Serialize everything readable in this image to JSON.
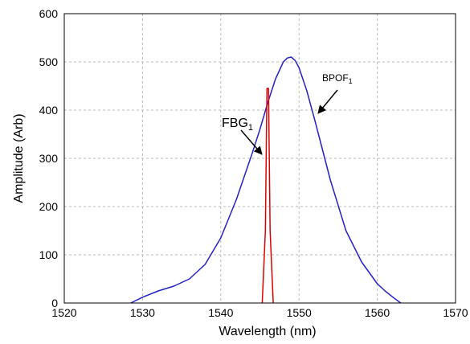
{
  "chart_data": {
    "type": "line",
    "title": "",
    "xlabel": "Wavelength (nm)",
    "ylabel": "Amplitude (Arb)",
    "xlim": [
      1520,
      1570
    ],
    "ylim": [
      0,
      600
    ],
    "xticks": [
      "1520",
      "1530",
      "1540",
      "1550",
      "1560",
      "1570"
    ],
    "yticks": [
      "0",
      "100",
      "200",
      "300",
      "400",
      "500",
      "600"
    ],
    "grid": true,
    "legend": "none",
    "series": [
      {
        "name": "BPOF",
        "color": "#2222cc",
        "x": [
          1528.5,
          1530,
          1532,
          1534,
          1536,
          1538,
          1540,
          1542,
          1544,
          1545,
          1546,
          1547,
          1548,
          1548.5,
          1549,
          1549.5,
          1550,
          1551,
          1552,
          1554,
          1556,
          1558,
          1560,
          1561,
          1562,
          1563
        ],
        "y": [
          0,
          12,
          25,
          35,
          50,
          80,
          135,
          215,
          310,
          360,
          415,
          465,
          500,
          508,
          510,
          503,
          488,
          440,
          380,
          255,
          150,
          85,
          40,
          25,
          12,
          0
        ]
      },
      {
        "name": "FBG",
        "color": "#dd0000",
        "x": [
          1545.3,
          1545.7,
          1545.9,
          1546.1,
          1546.3,
          1546.7
        ],
        "y": [
          0,
          150,
          445,
          445,
          150,
          0
        ]
      }
    ],
    "annotations": [
      {
        "text": "FBG",
        "sub": "1",
        "size": 16
      },
      {
        "text": "BPOF",
        "sub": "1",
        "size": 12
      }
    ]
  }
}
